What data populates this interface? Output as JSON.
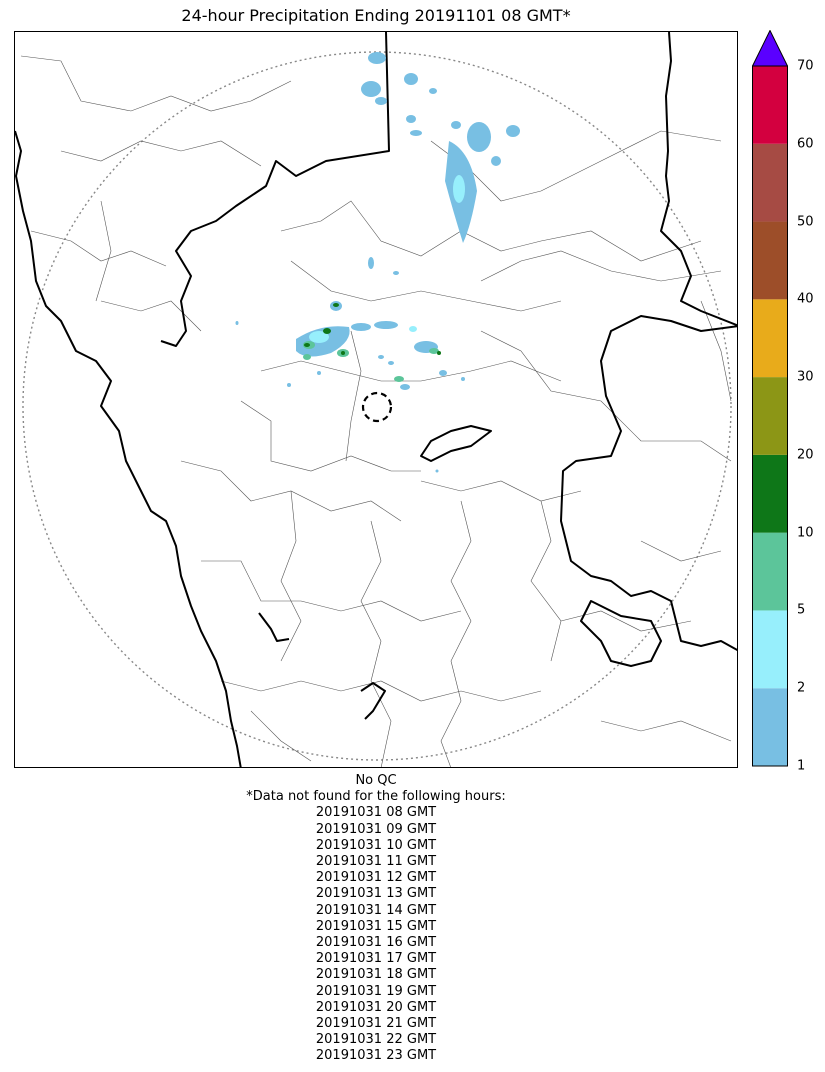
{
  "title": "24-hour Precipitation Ending 20191101 08 GMT*",
  "colorbar": {
    "labels": [
      "1",
      "2",
      "5",
      "10",
      "20",
      "30",
      "40",
      "50",
      "60",
      "70"
    ],
    "colors": [
      "#78bfe3",
      "#97effc",
      "#5cc59a",
      "#0e7718",
      "#8c9616",
      "#e8ab1b",
      "#9d4e29",
      "#a64b44",
      "#d3003f"
    ],
    "extend_color": "#5a00ff"
  },
  "notes": {
    "qc": "No QC",
    "missing_header": "*Data not found for the following hours:",
    "missing_hours": [
      "20191031 08 GMT",
      "20191031 09 GMT",
      "20191031 10 GMT",
      "20191031 11 GMT",
      "20191031 12 GMT",
      "20191031 13 GMT",
      "20191031 14 GMT",
      "20191031 15 GMT",
      "20191031 16 GMT",
      "20191031 17 GMT",
      "20191031 18 GMT",
      "20191031 19 GMT",
      "20191031 20 GMT",
      "20191031 21 GMT",
      "20191031 22 GMT",
      "20191031 23 GMT"
    ]
  }
}
